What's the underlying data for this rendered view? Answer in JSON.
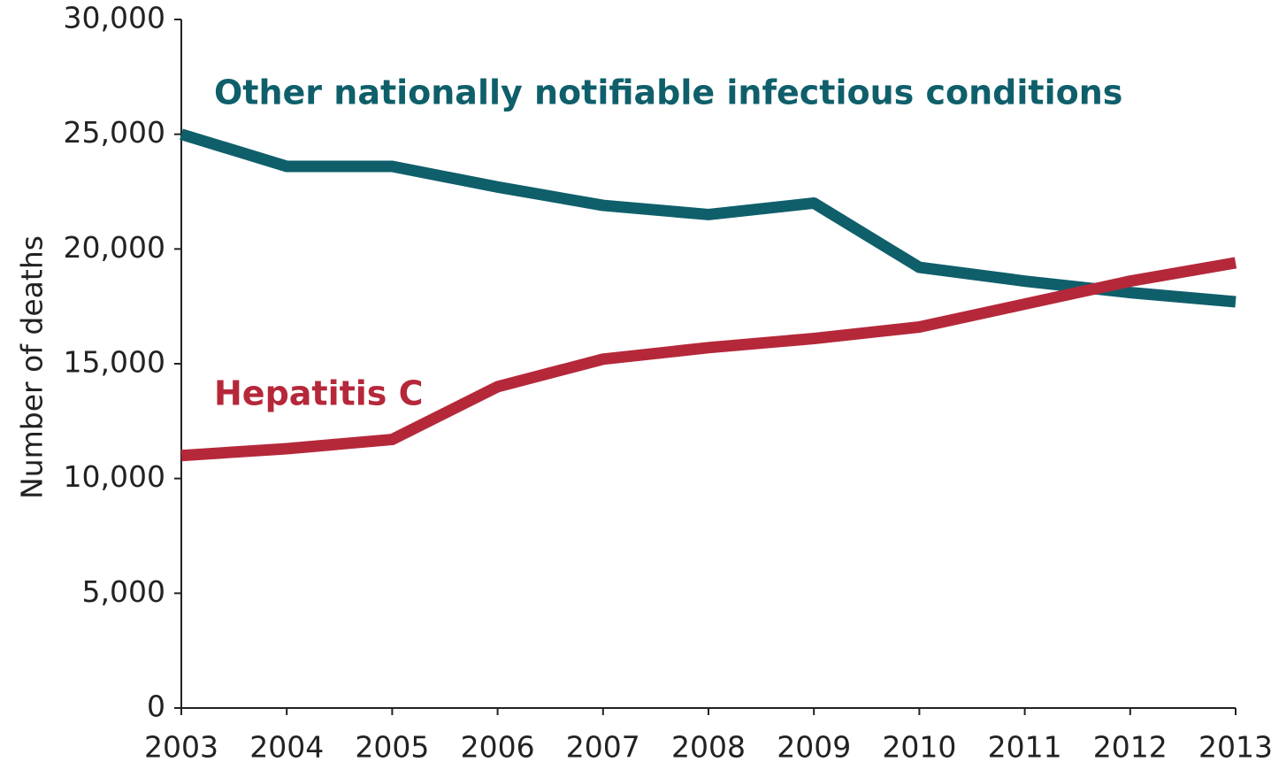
{
  "chart_data": {
    "type": "line",
    "y_label": "Number of deaths",
    "categories": [
      "2003",
      "2004",
      "2005",
      "2006",
      "2007",
      "2008",
      "2009",
      "2010",
      "2011",
      "2012",
      "2013"
    ],
    "series": [
      {
        "name": "Other nationally notifiable infectious conditions",
        "color": "#0f5f6b",
        "values": [
          25000,
          23600,
          23600,
          22700,
          21900,
          21500,
          22000,
          19200,
          18600,
          18100,
          17700
        ]
      },
      {
        "name": "Hepatitis C",
        "color": "#b5283a",
        "values": [
          11000,
          11300,
          11700,
          14000,
          15200,
          15700,
          16100,
          16600,
          17600,
          18600,
          19400
        ]
      }
    ],
    "ylim": [
      0,
      30000
    ],
    "yticks": [
      0,
      {
        "value": 5000,
        "label": "5,000"
      },
      {
        "value": 10000,
        "label": "10,000"
      },
      {
        "value": 15000,
        "label": "15,000"
      },
      {
        "value": 20000,
        "label": "20,000"
      },
      {
        "value": 25000,
        "label": "25,000"
      },
      {
        "value": 30000,
        "label": "30,000"
      }
    ],
    "grid": false
  }
}
